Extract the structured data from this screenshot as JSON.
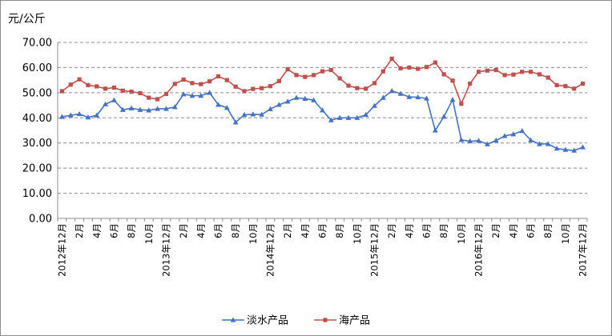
{
  "chart_data": {
    "type": "line",
    "unit_label": "元/公斤",
    "ylim": [
      0,
      70
    ],
    "yticks": [
      "0.00",
      "10.00",
      "20.00",
      "30.00",
      "40.00",
      "50.00",
      "60.00",
      "70.00"
    ],
    "grid": true,
    "legend_position": "bottom",
    "x_tick_labels": [
      "2012年12月",
      "2月",
      "4月",
      "6月",
      "8月",
      "10月",
      "2013年12月",
      "2月",
      "4月",
      "6月",
      "8月",
      "10月",
      "2014年12月",
      "2月",
      "4月",
      "6月",
      "8月",
      "10月",
      "2015年12月",
      "2月",
      "4月",
      "6月",
      "8月",
      "10月",
      "2016年12月",
      "2月",
      "4月",
      "6月",
      "8月",
      "10月",
      "2017年12月"
    ],
    "series": [
      {
        "name": "淡水产品",
        "color": "#4472C4",
        "marker": "triangle",
        "values": [
          40.4,
          41.0,
          41.5,
          40.2,
          41.0,
          45.4,
          47.0,
          43.2,
          43.8,
          43.2,
          43.0,
          43.6,
          43.6,
          44.3,
          49.4,
          48.8,
          48.8,
          50.0,
          45.2,
          44.0,
          38.2,
          41.2,
          41.4,
          41.3,
          43.5,
          45.2,
          46.5,
          48.0,
          47.6,
          47.0,
          43.0,
          39.1,
          40.0,
          40.0,
          40.0,
          41.2,
          44.8,
          48.0,
          50.7,
          49.6,
          48.3,
          48.2,
          47.7,
          35.0,
          40.5,
          47.2,
          31.2,
          30.7,
          30.9,
          29.5,
          31.0,
          32.8,
          33.5,
          34.8,
          31.1,
          29.6,
          29.6,
          27.8,
          27.3,
          27.0,
          28.3
        ]
      },
      {
        "name": "海产品",
        "color": "#C0504D",
        "marker": "square",
        "values": [
          50.6,
          53.2,
          55.3,
          53.0,
          52.5,
          51.6,
          52.0,
          50.8,
          50.4,
          49.8,
          48.0,
          47.4,
          49.5,
          53.5,
          55.2,
          53.8,
          53.4,
          54.5,
          56.5,
          55.0,
          52.4,
          50.6,
          51.5,
          51.8,
          52.6,
          54.6,
          59.3,
          57.0,
          56.3,
          57.0,
          58.5,
          59.0,
          55.7,
          52.8,
          51.8,
          51.6,
          53.8,
          58.5,
          63.5,
          59.7,
          60.0,
          59.5,
          60.2,
          62.0,
          57.3,
          54.8,
          45.6,
          53.6,
          58.3,
          58.8,
          59.0,
          57.0,
          57.2,
          58.3,
          58.3,
          57.3,
          56.0,
          53.0,
          52.6,
          51.6,
          53.6
        ]
      }
    ]
  }
}
